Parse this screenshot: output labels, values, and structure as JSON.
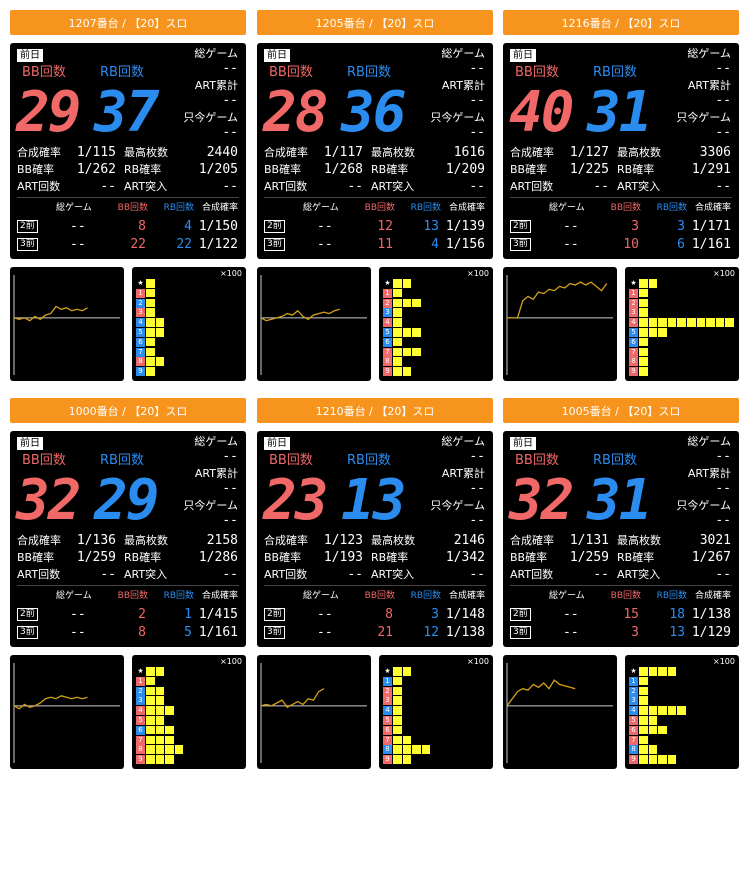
{
  "labels": {
    "prev_day": "前日",
    "bb_count": "BB回数",
    "rb_count": "RB回数",
    "total_game": "総ゲーム",
    "art_total": "ART累計",
    "current_game": "只今ゲーム",
    "combined_prob": "合成確率",
    "bb_prob": "BB確率",
    "art_count": "ART回数",
    "max_coins": "最高枚数",
    "rb_prob": "RB確率",
    "art_entry": "ART突入",
    "hist_total_game": "総ゲーム",
    "hist_bb": "BB回数",
    "hist_rb": "RB回数",
    "hist_combined": "合成確率",
    "two_before": "2前",
    "three_before": "3前",
    "x100": "×100",
    "star": "★"
  },
  "colors": {
    "header": "#f7941d",
    "bb": "#f06868",
    "rb": "#2b8cf0",
    "bar": "#ffff33",
    "line": "#d4a017"
  },
  "machines": [
    {
      "title": "1207番台 / 【20】スロ",
      "bb": "29",
      "rb": "37",
      "total_game": "--",
      "art_total": "--",
      "current_game": "--",
      "combined_prob": "1/115",
      "bb_prob": "1/262",
      "art_count": "--",
      "max_coins": "2440",
      "rb_prob": "1/205",
      "art_entry": "--",
      "history": [
        {
          "total": "--",
          "bb": "8",
          "rb": "4",
          "combined": "1/150"
        },
        {
          "total": "--",
          "bb": "22",
          "rb": "22",
          "combined": "1/122"
        }
      ],
      "line": [
        0,
        -1,
        0,
        -2,
        1,
        -1,
        2,
        3,
        8,
        6,
        7,
        5,
        6,
        5,
        7
      ],
      "bars": [
        {
          "label": "★",
          "type": "star",
          "count": 1
        },
        {
          "label": "1",
          "type": "bb",
          "count": 1
        },
        {
          "label": "2",
          "type": "rb",
          "count": 1
        },
        {
          "label": "3",
          "type": "bb",
          "count": 1
        },
        {
          "label": "4",
          "type": "rb",
          "count": 2
        },
        {
          "label": "5",
          "type": "rb",
          "count": 2
        },
        {
          "label": "6",
          "type": "rb",
          "count": 1
        },
        {
          "label": "7",
          "type": "rb",
          "count": 1
        },
        {
          "label": "8",
          "type": "bb",
          "count": 2
        },
        {
          "label": "9",
          "type": "rb",
          "count": 1
        }
      ]
    },
    {
      "title": "1205番台 / 【20】スロ",
      "bb": "28",
      "rb": "36",
      "total_game": "--",
      "art_total": "--",
      "current_game": "--",
      "combined_prob": "1/117",
      "bb_prob": "1/268",
      "art_count": "--",
      "max_coins": "1616",
      "rb_prob": "1/209",
      "art_entry": "--",
      "history": [
        {
          "total": "--",
          "bb": "12",
          "rb": "13",
          "combined": "1/139"
        },
        {
          "total": "--",
          "bb": "11",
          "rb": "4",
          "combined": "1/156"
        }
      ],
      "line": [
        0,
        -2,
        -1,
        0,
        1,
        3,
        2,
        5,
        1,
        -1,
        2,
        3,
        4,
        3,
        5,
        6
      ],
      "bars": [
        {
          "label": "★",
          "type": "star",
          "count": 2
        },
        {
          "label": "1",
          "type": "bb",
          "count": 1
        },
        {
          "label": "2",
          "type": "bb",
          "count": 3
        },
        {
          "label": "3",
          "type": "rb",
          "count": 1
        },
        {
          "label": "4",
          "type": "bb",
          "count": 1
        },
        {
          "label": "5",
          "type": "rb",
          "count": 3
        },
        {
          "label": "6",
          "type": "rb",
          "count": 1
        },
        {
          "label": "7",
          "type": "bb",
          "count": 3
        },
        {
          "label": "8",
          "type": "bb",
          "count": 1
        },
        {
          "label": "9",
          "type": "bb",
          "count": 2
        }
      ]
    },
    {
      "title": "1216番台 / 【20】スロ",
      "bb": "40",
      "rb": "31",
      "total_game": "--",
      "art_total": "--",
      "current_game": "--",
      "combined_prob": "1/127",
      "bb_prob": "1/225",
      "art_count": "--",
      "max_coins": "3306",
      "rb_prob": "1/291",
      "art_entry": "--",
      "history": [
        {
          "total": "--",
          "bb": "3",
          "rb": "3",
          "combined": "1/171"
        },
        {
          "total": "--",
          "bb": "10",
          "rb": "6",
          "combined": "1/161"
        }
      ],
      "line": [
        0,
        0,
        0,
        12,
        15,
        13,
        18,
        17,
        20,
        19,
        22,
        21,
        24,
        23,
        25,
        23,
        25,
        22,
        19,
        24
      ],
      "bars": [
        {
          "label": "★",
          "type": "star",
          "count": 2
        },
        {
          "label": "1",
          "type": "bb",
          "count": 1
        },
        {
          "label": "2",
          "type": "bb",
          "count": 1
        },
        {
          "label": "3",
          "type": "bb",
          "count": 1
        },
        {
          "label": "4",
          "type": "bb",
          "count": 10
        },
        {
          "label": "5",
          "type": "rb",
          "count": 3
        },
        {
          "label": "6",
          "type": "rb",
          "count": 1
        },
        {
          "label": "7",
          "type": "bb",
          "count": 1
        },
        {
          "label": "8",
          "type": "bb",
          "count": 1
        },
        {
          "label": "9",
          "type": "bb",
          "count": 1
        }
      ]
    },
    {
      "title": "1000番台 / 【20】スロ",
      "bb": "32",
      "rb": "29",
      "total_game": "--",
      "art_total": "--",
      "current_game": "--",
      "combined_prob": "1/136",
      "bb_prob": "1/259",
      "art_count": "--",
      "max_coins": "2158",
      "rb_prob": "1/286",
      "art_entry": "--",
      "history": [
        {
          "total": "--",
          "bb": "2",
          "rb": "1",
          "combined": "1/415"
        },
        {
          "total": "--",
          "bb": "8",
          "rb": "5",
          "combined": "1/161"
        }
      ],
      "line": [
        0,
        -2,
        1,
        -1,
        0,
        2,
        5,
        6,
        5,
        7,
        6,
        5,
        6,
        5,
        6
      ],
      "bars": [
        {
          "label": "★",
          "type": "star",
          "count": 2
        },
        {
          "label": "1",
          "type": "bb",
          "count": 1
        },
        {
          "label": "2",
          "type": "rb",
          "count": 2
        },
        {
          "label": "3",
          "type": "rb",
          "count": 2
        },
        {
          "label": "4",
          "type": "bb",
          "count": 3
        },
        {
          "label": "5",
          "type": "bb",
          "count": 2
        },
        {
          "label": "6",
          "type": "rb",
          "count": 3
        },
        {
          "label": "7",
          "type": "bb",
          "count": 3
        },
        {
          "label": "8",
          "type": "bb",
          "count": 4
        },
        {
          "label": "9",
          "type": "bb",
          "count": 3
        }
      ]
    },
    {
      "title": "1210番台 / 【20】スロ",
      "bb": "23",
      "rb": "13",
      "total_game": "--",
      "art_total": "--",
      "current_game": "--",
      "combined_prob": "1/123",
      "bb_prob": "1/193",
      "art_count": "--",
      "max_coins": "2146",
      "rb_prob": "1/342",
      "art_entry": "--",
      "history": [
        {
          "total": "--",
          "bb": "8",
          "rb": "3",
          "combined": "1/148"
        },
        {
          "total": "--",
          "bb": "21",
          "rb": "12",
          "combined": "1/138"
        }
      ],
      "line": [
        0,
        1,
        0,
        2,
        4,
        -1,
        1,
        3,
        1,
        5,
        4,
        10,
        12
      ],
      "bars": [
        {
          "label": "★",
          "type": "star",
          "count": 2
        },
        {
          "label": "1",
          "type": "rb",
          "count": 1
        },
        {
          "label": "2",
          "type": "bb",
          "count": 1
        },
        {
          "label": "3",
          "type": "bb",
          "count": 1
        },
        {
          "label": "4",
          "type": "rb",
          "count": 1
        },
        {
          "label": "5",
          "type": "bb",
          "count": 1
        },
        {
          "label": "6",
          "type": "bb",
          "count": 1
        },
        {
          "label": "7",
          "type": "bb",
          "count": 2
        },
        {
          "label": "8",
          "type": "rb",
          "count": 4
        },
        {
          "label": "9",
          "type": "bb",
          "count": 2
        }
      ]
    },
    {
      "title": "1005番台 / 【20】スロ",
      "bb": "32",
      "rb": "31",
      "total_game": "--",
      "art_total": "--",
      "current_game": "--",
      "combined_prob": "1/131",
      "bb_prob": "1/259",
      "art_count": "--",
      "max_coins": "3021",
      "rb_prob": "1/267",
      "art_entry": "--",
      "history": [
        {
          "total": "--",
          "bb": "15",
          "rb": "18",
          "combined": "1/138"
        },
        {
          "total": "--",
          "bb": "3",
          "rb": "13",
          "combined": "1/129"
        }
      ],
      "line": [
        0,
        5,
        10,
        12,
        11,
        15,
        13,
        16,
        12,
        18,
        15,
        14,
        13,
        12
      ],
      "bars": [
        {
          "label": "★",
          "type": "star",
          "count": 4
        },
        {
          "label": "1",
          "type": "rb",
          "count": 1
        },
        {
          "label": "2",
          "type": "rb",
          "count": 1
        },
        {
          "label": "3",
          "type": "rb",
          "count": 1
        },
        {
          "label": "4",
          "type": "rb",
          "count": 5
        },
        {
          "label": "5",
          "type": "bb",
          "count": 2
        },
        {
          "label": "6",
          "type": "bb",
          "count": 3
        },
        {
          "label": "7",
          "type": "bb",
          "count": 1
        },
        {
          "label": "8",
          "type": "rb",
          "count": 2
        },
        {
          "label": "9",
          "type": "bb",
          "count": 4
        }
      ]
    }
  ]
}
